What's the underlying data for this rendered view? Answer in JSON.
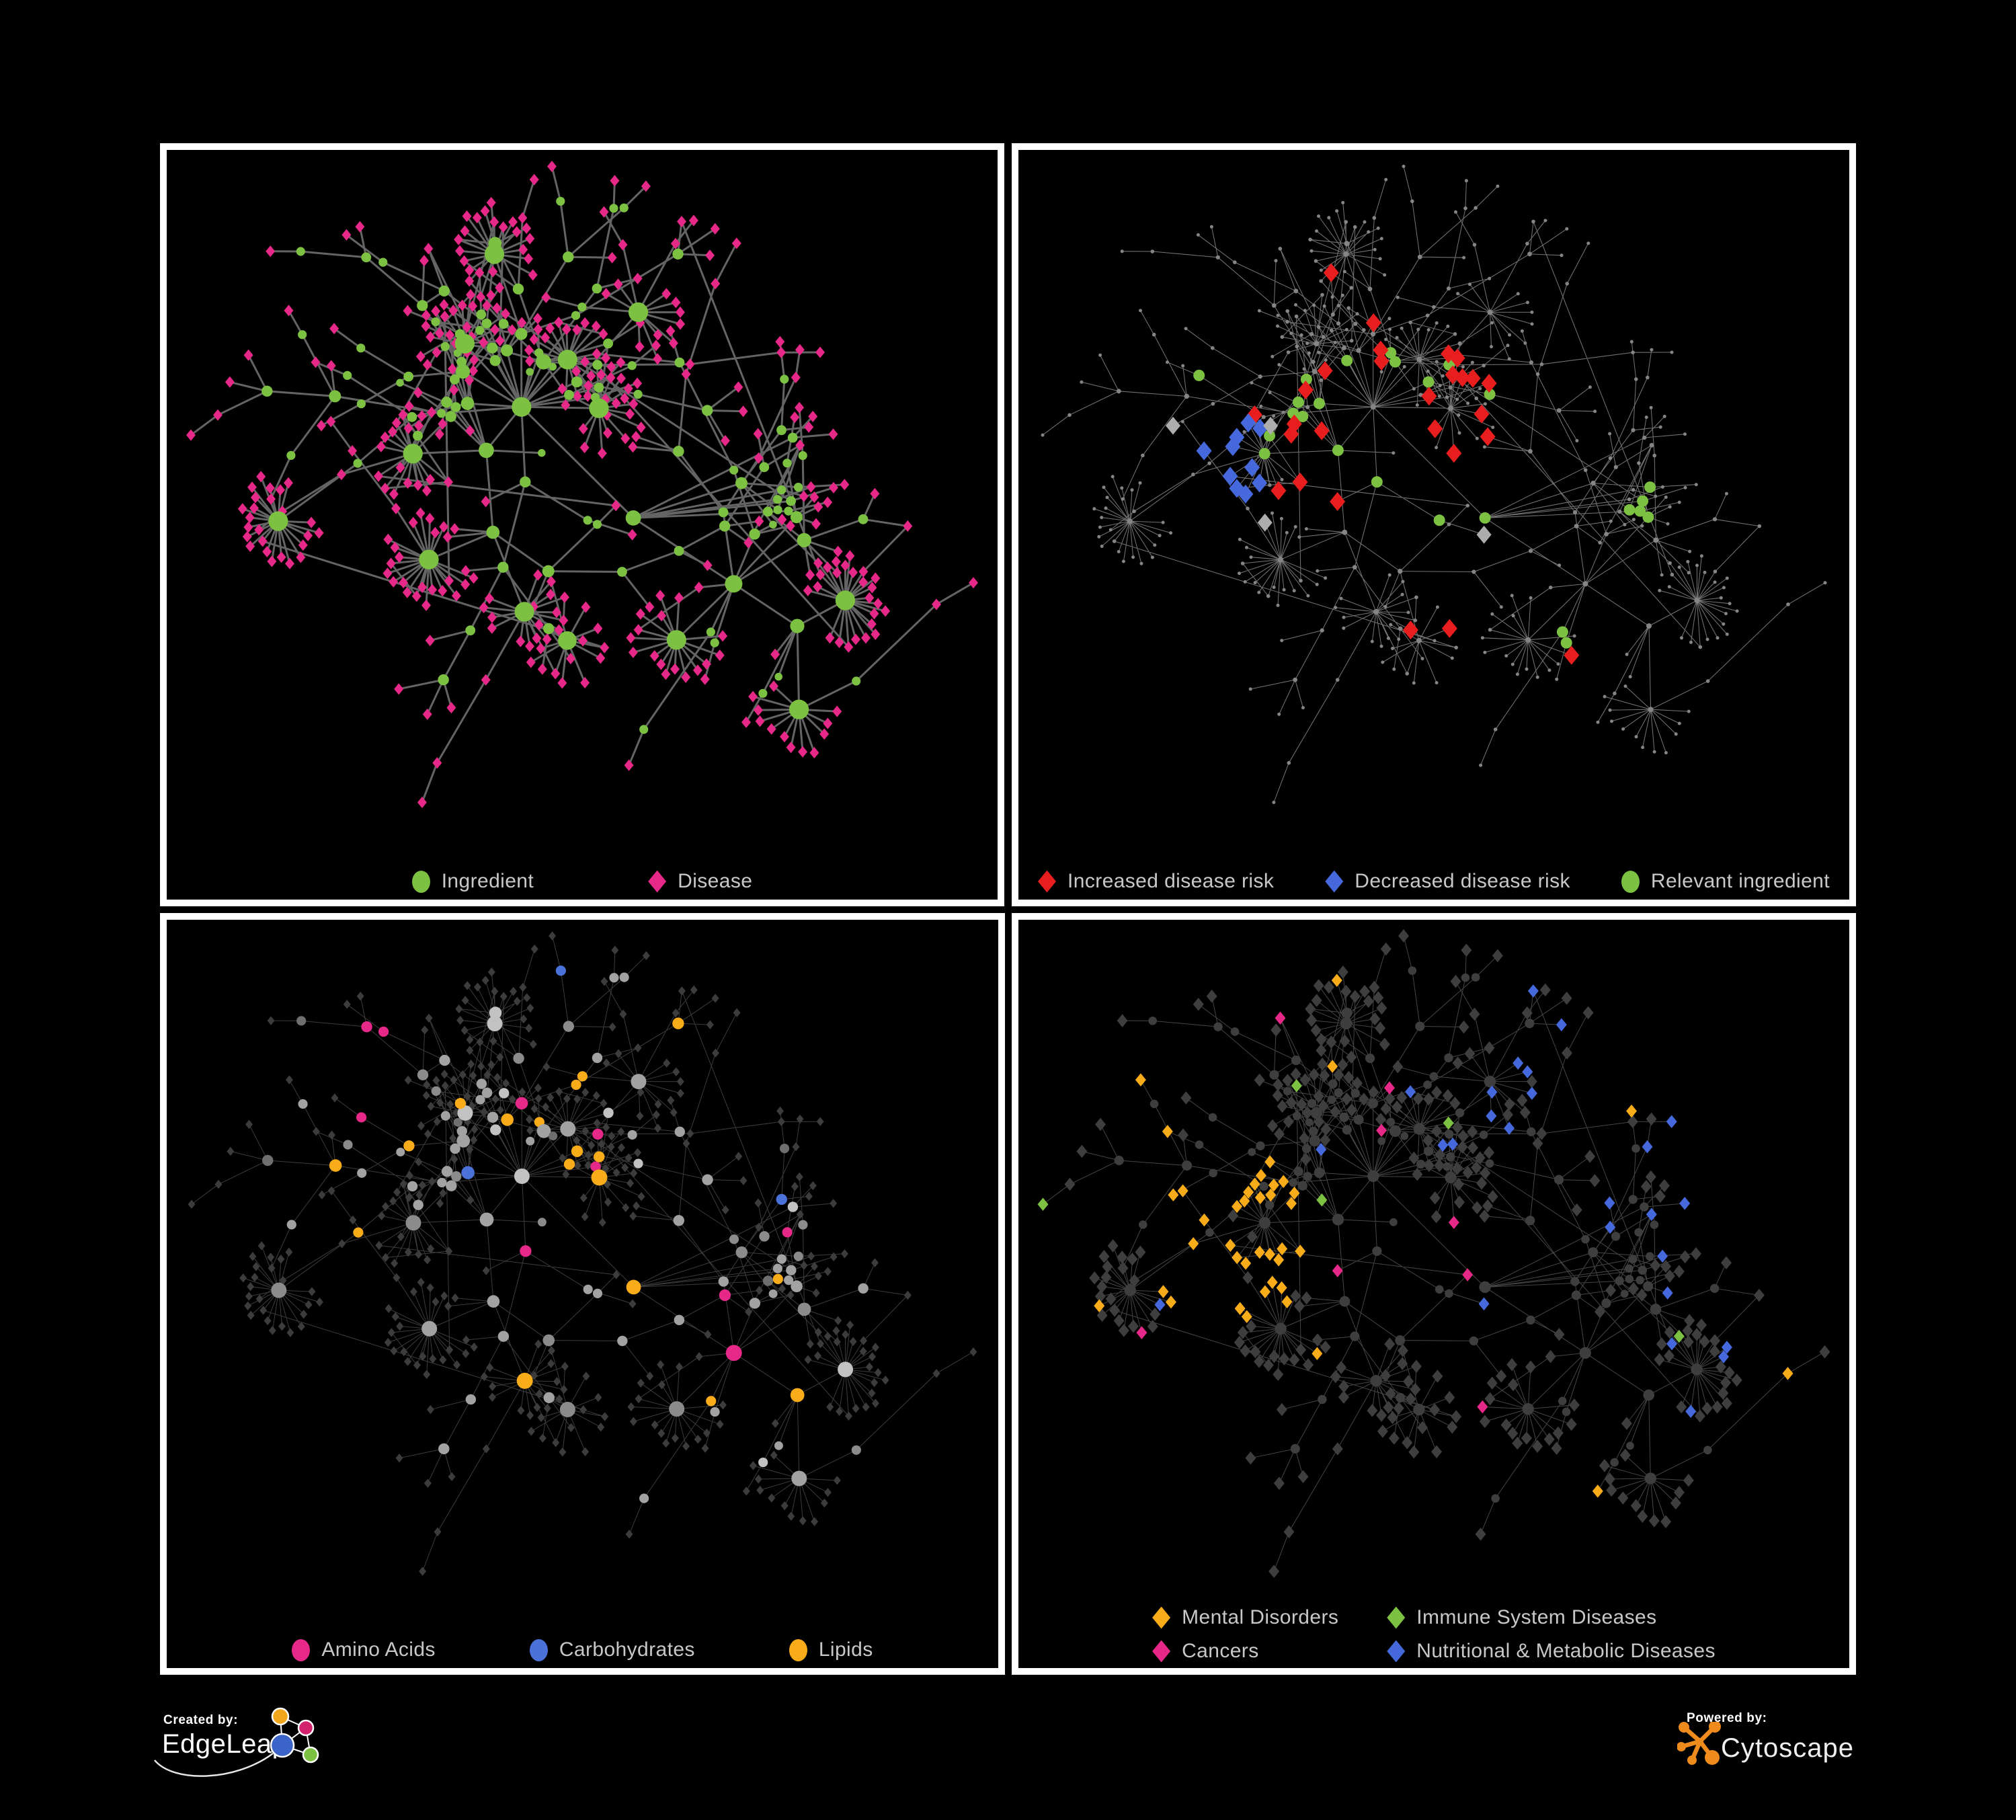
{
  "colors": {
    "background": "#000000",
    "panel_border": "#FFFFFF",
    "legend_text": "#C8C8C8"
  },
  "panels": [
    {
      "id": "ingredient-disease",
      "legend": [
        {
          "label": "Ingredient",
          "shape": "circle",
          "color": "#7CC142"
        },
        {
          "label": "Disease",
          "shape": "diamond",
          "color": "#E62888"
        }
      ]
    },
    {
      "id": "disease-risk",
      "legend": [
        {
          "label": "Increased disease risk",
          "shape": "diamond",
          "color": "#E81E1E"
        },
        {
          "label": "Decreased disease risk",
          "shape": "diamond",
          "color": "#4569DD"
        },
        {
          "label": "Relevant ingredient",
          "shape": "circle",
          "color": "#7CC142"
        }
      ]
    },
    {
      "id": "nutrient-classes",
      "legend": [
        {
          "label": "Amino Acids",
          "shape": "circle",
          "color": "#E62888"
        },
        {
          "label": "Carbohydrates",
          "shape": "circle",
          "color": "#4A72D8"
        },
        {
          "label": "Lipids",
          "shape": "circle",
          "color": "#F8AC1A"
        }
      ]
    },
    {
      "id": "disease-classes",
      "legend": [
        {
          "label": "Mental Disorders",
          "shape": "diamond",
          "color": "#F8AC1A"
        },
        {
          "label": "Immune System Diseases",
          "shape": "diamond",
          "color": "#7CC142"
        },
        {
          "label": "Cancers",
          "shape": "diamond",
          "color": "#E62888"
        },
        {
          "label": "Nutritional & Metabolic Diseases",
          "shape": "diamond",
          "color": "#4569DD"
        }
      ]
    }
  ],
  "footer": {
    "created_by_label": "Created by:",
    "created_by_brand": "EdgeLeap",
    "powered_by_label": "Powered by:",
    "powered_by_brand": "Cytoscape",
    "edgeleap_node_colors": {
      "blue": "#3B63C8",
      "orange": "#F2A71B",
      "pink": "#D4216E",
      "green": "#7CC142"
    },
    "edgeleap_line_color": "#FFFFFF",
    "cytoscape_color": "#EF8B1D"
  },
  "network": {
    "seed": 7,
    "ingredientCount": 120,
    "crossEdgesShort": 30,
    "crossEdgesLong": 6,
    "panelStyles": [
      {
        "edge": {
          "color": "#696969",
          "width": 3.0,
          "opacity": 0.95
        },
        "nodes": {
          "ingredientFill": "#7CC142",
          "diseaseFill": "#E62888",
          "diseaseHalf": 7,
          "rBase": 5,
          "rPerDeg": 0.8,
          "rDegCap": 12
        }
      },
      {
        "edge": {
          "color": "#7E7E7E",
          "width": 1.05,
          "opacity": 0.9
        },
        "dot": {
          "fill": "#858585"
        },
        "highlights": [
          {
            "name": "decreased",
            "target": "d",
            "shape": "diamond",
            "color": "#4569DD",
            "half": 11.5,
            "masks": [
              [
                0.25,
                0.46,
                0.055,
                0.06,
                0.55
              ],
              [
                0.815,
                0.345,
                0.035,
                0.03,
                1.0
              ]
            ],
            "scatter": 0.004
          },
          {
            "name": "increased",
            "target": "d",
            "shape": "diamond",
            "color": "#E81E1E",
            "half": 11.5,
            "masks": [
              [
                0.45,
                0.44,
                0.21,
                0.16,
                0.3
              ],
              [
                0.68,
                0.72,
                0.06,
                0.05,
                0.35
              ],
              [
                0.62,
                0.4,
                0.035,
                0.035,
                0.6
              ]
            ],
            "scatter": 0.012
          },
          {
            "name": "neutral",
            "target": "d",
            "shape": "diamond",
            "color": "#ADADAD",
            "half": 11,
            "masks": [
              [
                0.4,
                0.47,
                0.18,
                0.12,
                0.06
              ],
              [
                0.59,
                0.6,
                0.05,
                0.05,
                0.25
              ],
              [
                0.2,
                0.4,
                0.035,
                0.04,
                0.5
              ]
            ],
            "scatter": 0.004
          },
          {
            "name": "relevant",
            "target": "i",
            "shape": "circle",
            "color": "#7CC142",
            "r": 8.5,
            "masks": [
              [
                0.43,
                0.45,
                0.21,
                0.16,
                0.42
              ],
              [
                0.69,
                0.72,
                0.06,
                0.05,
                0.7
              ],
              [
                0.78,
                0.52,
                0.05,
                0.04,
                0.6
              ],
              [
                0.24,
                0.38,
                0.09,
                0.07,
                0.35
              ]
            ],
            "scatter": 0.02
          }
        ]
      },
      {
        "edge": {
          "color": "#909090",
          "width": 1.0,
          "opacity": 0.42
        },
        "disease": {
          "fill": "#3C3C3C",
          "half": 5.5
        },
        "ingredientGrays": [
          "#A2A2A2",
          "#8B8B8B",
          "#C2C2C2",
          "#6F6F6F"
        ],
        "classes": [
          {
            "name": "lipids",
            "color": "#F8AC1A",
            "masks": [
              [
                0.5,
                0.385,
                0.055,
                0.05,
                0.8
              ],
              [
                0.42,
                0.235,
                0.13,
                0.1,
                0.32
              ],
              [
                0.44,
                0.46,
                0.09,
                0.07,
                0.33
              ],
              [
                0.555,
                0.55,
                0.035,
                0.03,
                0.95
              ],
              [
                0.645,
                0.52,
                0.05,
                0.045,
                0.5
              ]
            ],
            "scatter": 0.04
          },
          {
            "name": "carbohydrates",
            "color": "#4A72D8",
            "masks": [
              [
                0.5,
                0.385,
                0.06,
                0.055,
                0.3
              ],
              [
                0.37,
                0.39,
                0.03,
                0.03,
                0.5
              ]
            ],
            "scatter": 0.018
          },
          {
            "name": "amino-acids",
            "color": "#E62888",
            "masks": [
              [
                0.68,
                0.65,
                0.09,
                0.08,
                0.22
              ]
            ],
            "scatter": 0.055
          }
        ]
      },
      {
        "edge": {
          "color": "#8A8A8A",
          "width": 1.0,
          "opacity": 0.5
        },
        "disease": {
          "fill": "#3E3E3E",
          "half": 8
        },
        "ingredient": {
          "fill": "#3E3E3E"
        },
        "classes": [
          {
            "name": "mental-disorders",
            "color": "#F8AC1A",
            "masks": [
              [
                0.225,
                0.465,
                0.125,
                0.145,
                0.85
              ],
              [
                0.33,
                0.62,
                0.05,
                0.05,
                0.3
              ]
            ],
            "scatter": 0.02
          },
          {
            "name": "nutritional-metabolic",
            "color": "#4569DD",
            "masks": [
              [
                0.585,
                0.585,
                0.05,
                0.05,
                0.85
              ],
              [
                0.14,
                0.12,
                0.07,
                0.06,
                0.6
              ],
              [
                0.75,
                0.25,
                0.22,
                0.22,
                0.16
              ],
              [
                0.3,
                0.4,
                0.04,
                0.04,
                0.3
              ]
            ],
            "scatter": 0.03
          },
          {
            "name": "cancers",
            "color": "#E62888",
            "masks": [
              [
                0.465,
                0.54,
                0.125,
                0.12,
                0.5
              ],
              [
                0.87,
                0.28,
                0.055,
                0.06,
                0.75
              ]
            ],
            "scatter": 0.015
          },
          {
            "name": "immune-system",
            "color": "#7CC142",
            "masks": [],
            "scatter": 0.014
          }
        ]
      }
    ]
  }
}
